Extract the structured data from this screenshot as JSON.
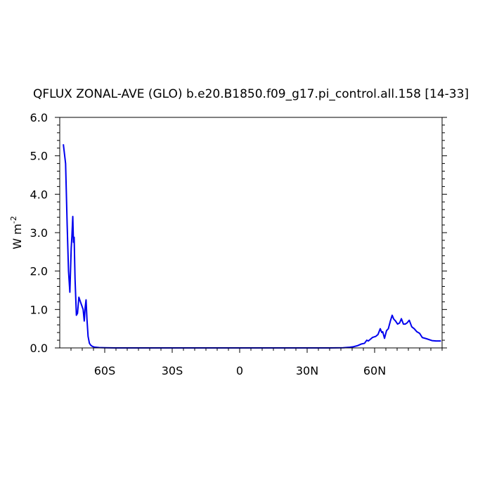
{
  "chart_data": {
    "type": "line",
    "title": "QFLUX ZONAL-AVE (GLO) b.e20.B1850.f09_g17.pi_control.all.158 [14-33]",
    "ylabel_main": "W m",
    "ylabel_sup": "-2",
    "xlim": [
      -80,
      90
    ],
    "ylim": [
      0,
      6
    ],
    "x_ticks": [
      {
        "value": -60,
        "label": "60S"
      },
      {
        "value": -30,
        "label": "30S"
      },
      {
        "value": 0,
        "label": "0"
      },
      {
        "value": 30,
        "label": "30N"
      },
      {
        "value": 60,
        "label": "60N"
      }
    ],
    "y_ticks": [
      {
        "value": 0,
        "label": "0.0"
      },
      {
        "value": 1,
        "label": "1.0"
      },
      {
        "value": 2,
        "label": "2.0"
      },
      {
        "value": 3,
        "label": "3.0"
      },
      {
        "value": 4,
        "label": "4.0"
      },
      {
        "value": 5,
        "label": "5.0"
      },
      {
        "value": 6,
        "label": "6.0"
      }
    ],
    "series": [
      {
        "color": "#0000ee",
        "x": [
          -78.4,
          -77.4,
          -76.7,
          -76.1,
          -75.5,
          -74.9,
          -74.6,
          -74.2,
          -73.9,
          -73.6,
          -73.2,
          -72.6,
          -72.1,
          -71.5,
          -70.8,
          -70.2,
          -69.6,
          -69.1,
          -68.7,
          -68.3,
          -67.9,
          -67.4,
          -66.8,
          -66.2,
          -65.5,
          -64.5,
          -62.5,
          -60,
          -55,
          -50,
          -40,
          -20,
          0,
          20,
          40,
          46,
          48.5,
          50.5,
          52.5,
          54,
          55.5,
          56.5,
          57.2,
          58,
          59,
          60.5,
          61.5,
          62.5,
          63.2,
          63.6,
          64.4,
          65.3,
          66.1,
          67,
          67.8,
          68.5,
          69.3,
          70.2,
          71.1,
          71.9,
          72.8,
          73.6,
          74.4,
          75.4,
          76.5,
          77.6,
          78.8,
          80,
          81.2,
          83,
          85.5,
          87.3,
          89.5
        ],
        "y": [
          5.3,
          4.8,
          3.2,
          2.0,
          1.45,
          2.6,
          2.9,
          3.42,
          2.75,
          2.88,
          1.8,
          0.85,
          0.9,
          1.32,
          1.2,
          1.1,
          1.0,
          0.7,
          1.05,
          1.25,
          0.75,
          0.3,
          0.12,
          0.07,
          0.04,
          0.02,
          0.01,
          0.005,
          0.0,
          0.0,
          0.0,
          0.0,
          0.0,
          0.0,
          0.0,
          0.005,
          0.015,
          0.03,
          0.06,
          0.1,
          0.12,
          0.2,
          0.18,
          0.22,
          0.27,
          0.3,
          0.35,
          0.5,
          0.4,
          0.42,
          0.25,
          0.45,
          0.5,
          0.7,
          0.85,
          0.75,
          0.7,
          0.62,
          0.65,
          0.76,
          0.62,
          0.62,
          0.65,
          0.72,
          0.55,
          0.5,
          0.42,
          0.38,
          0.27,
          0.24,
          0.19,
          0.18,
          0.18
        ]
      }
    ]
  }
}
